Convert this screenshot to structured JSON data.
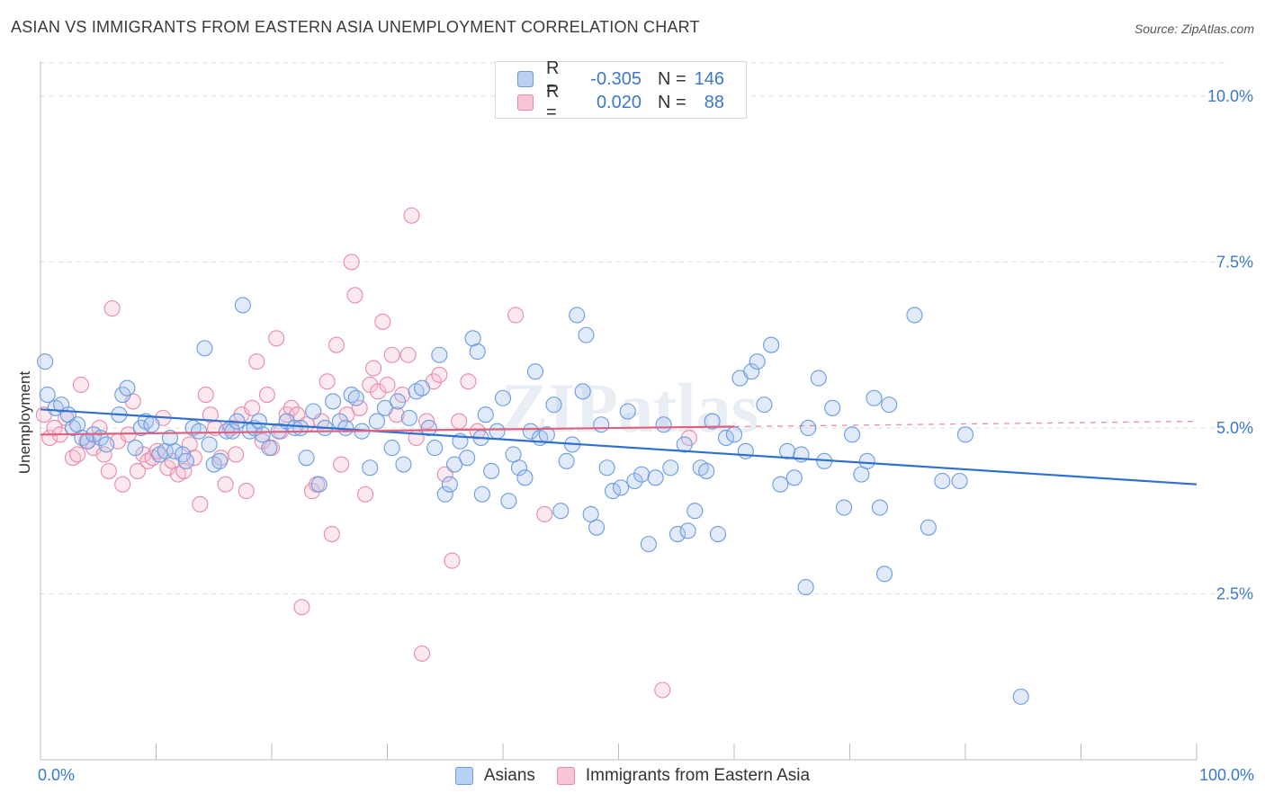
{
  "title": "ASIAN VS IMMIGRANTS FROM EASTERN ASIA UNEMPLOYMENT CORRELATION CHART",
  "source": "Source: ZipAtlas.com",
  "watermark": "ZIPatlas",
  "legend": {
    "rows": [
      {
        "label": "R =",
        "r": "-0.305",
        "n_label": "N =",
        "n": "146",
        "fill": "#b8d0f2",
        "stroke": "#6a9be0"
      },
      {
        "label": "R =",
        "r": "0.020",
        "n_label": "N =",
        "n": "88",
        "fill": "#f7c5d4",
        "stroke": "#e88aa8"
      }
    ]
  },
  "bottom_legend": [
    {
      "label": "Asians",
      "fill": "#b8d0f2",
      "stroke": "#6a9be0"
    },
    {
      "label": "Immigrants from Eastern Asia",
      "fill": "#f7c5d4",
      "stroke": "#e88aa8"
    }
  ],
  "y_axis_label": "Unemployment",
  "x_tick_labels": {
    "left": "0.0%",
    "right": "100.0%"
  },
  "chart_data": {
    "type": "scatter",
    "xlim": [
      0,
      100
    ],
    "ylim": [
      0,
      10.5
    ],
    "y_ticks": [
      {
        "value": 2.5,
        "label": "2.5%"
      },
      {
        "value": 5.0,
        "label": "5.0%"
      },
      {
        "value": 7.5,
        "label": "7.5%"
      },
      {
        "value": 10.0,
        "label": "10.0%"
      }
    ],
    "grid": true,
    "series": [
      {
        "name": "Asians",
        "color": "#6a9be0",
        "fill": "rgba(168,196,238,0.35)",
        "trend": {
          "x": [
            0,
            100
          ],
          "y": [
            5.28,
            4.15
          ]
        },
        "points": [
          [
            0.4,
            6.0
          ],
          [
            0.6,
            5.5
          ],
          [
            1.3,
            5.3
          ],
          [
            1.8,
            5.35
          ],
          [
            2.4,
            5.2
          ],
          [
            2.8,
            5.0
          ],
          [
            3.2,
            5.05
          ],
          [
            3.6,
            4.85
          ],
          [
            4.1,
            4.8
          ],
          [
            4.6,
            4.9
          ],
          [
            5.2,
            4.85
          ],
          [
            5.7,
            4.75
          ],
          [
            6.8,
            5.2
          ],
          [
            7.1,
            5.5
          ],
          [
            7.5,
            5.6
          ],
          [
            8.2,
            4.7
          ],
          [
            8.7,
            5.0
          ],
          [
            9.1,
            5.1
          ],
          [
            9.6,
            5.05
          ],
          [
            10.3,
            4.6
          ],
          [
            10.8,
            4.65
          ],
          [
            11.2,
            4.85
          ],
          [
            11.6,
            4.65
          ],
          [
            12.3,
            4.6
          ],
          [
            12.6,
            4.5
          ],
          [
            13.2,
            5.0
          ],
          [
            13.7,
            4.95
          ],
          [
            14.2,
            6.2
          ],
          [
            14.6,
            4.75
          ],
          [
            15.0,
            4.45
          ],
          [
            15.5,
            4.5
          ],
          [
            16.1,
            4.95
          ],
          [
            16.6,
            4.95
          ],
          [
            17.0,
            5.1
          ],
          [
            17.5,
            6.85
          ],
          [
            18.1,
            4.95
          ],
          [
            18.5,
            5.0
          ],
          [
            18.9,
            5.1
          ],
          [
            19.2,
            4.9
          ],
          [
            19.8,
            4.7
          ],
          [
            20.6,
            4.95
          ],
          [
            21.3,
            5.1
          ],
          [
            22.0,
            5.0
          ],
          [
            22.5,
            5.0
          ],
          [
            23.0,
            4.55
          ],
          [
            23.6,
            5.25
          ],
          [
            24.1,
            4.15
          ],
          [
            24.6,
            5.0
          ],
          [
            25.3,
            5.4
          ],
          [
            25.9,
            5.1
          ],
          [
            26.4,
            5.0
          ],
          [
            26.9,
            5.5
          ],
          [
            27.3,
            5.45
          ],
          [
            27.8,
            4.95
          ],
          [
            28.5,
            4.4
          ],
          [
            29.1,
            5.1
          ],
          [
            29.8,
            5.3
          ],
          [
            30.4,
            4.7
          ],
          [
            30.9,
            5.4
          ],
          [
            31.4,
            4.45
          ],
          [
            31.9,
            5.15
          ],
          [
            32.5,
            5.55
          ],
          [
            33.0,
            5.6
          ],
          [
            33.6,
            5.0
          ],
          [
            34.1,
            4.7
          ],
          [
            34.5,
            6.1
          ],
          [
            35.0,
            4.0
          ],
          [
            35.4,
            4.15
          ],
          [
            35.8,
            4.45
          ],
          [
            36.3,
            4.8
          ],
          [
            36.9,
            4.55
          ],
          [
            37.4,
            6.35
          ],
          [
            37.8,
            6.15
          ],
          [
            38.1,
            4.85
          ],
          [
            38.5,
            5.2
          ],
          [
            39.0,
            4.35
          ],
          [
            39.5,
            4.95
          ],
          [
            40.0,
            5.45
          ],
          [
            40.5,
            3.9
          ],
          [
            40.9,
            4.6
          ],
          [
            41.4,
            4.4
          ],
          [
            41.9,
            4.25
          ],
          [
            42.4,
            4.95
          ],
          [
            42.8,
            5.85
          ],
          [
            43.2,
            4.85
          ],
          [
            43.8,
            4.9
          ],
          [
            44.4,
            5.35
          ],
          [
            45.0,
            3.75
          ],
          [
            45.5,
            4.5
          ],
          [
            46.0,
            4.75
          ],
          [
            46.4,
            6.7
          ],
          [
            46.9,
            5.55
          ],
          [
            47.2,
            6.4
          ],
          [
            47.6,
            3.7
          ],
          [
            48.1,
            3.5
          ],
          [
            48.5,
            5.05
          ],
          [
            49.0,
            4.4
          ],
          [
            49.5,
            4.05
          ],
          [
            50.2,
            4.1
          ],
          [
            50.8,
            5.25
          ],
          [
            51.4,
            4.2
          ],
          [
            52.0,
            4.3
          ],
          [
            52.6,
            3.25
          ],
          [
            53.2,
            4.25
          ],
          [
            53.9,
            5.05
          ],
          [
            54.5,
            4.4
          ],
          [
            55.1,
            3.4
          ],
          [
            55.7,
            4.75
          ],
          [
            56.0,
            3.45
          ],
          [
            56.6,
            3.75
          ],
          [
            57.1,
            4.4
          ],
          [
            57.6,
            4.35
          ],
          [
            58.1,
            5.1
          ],
          [
            58.6,
            3.4
          ],
          [
            59.3,
            4.85
          ],
          [
            60.0,
            4.9
          ],
          [
            60.5,
            5.75
          ],
          [
            61.0,
            4.65
          ],
          [
            61.5,
            5.85
          ],
          [
            62.0,
            6.0
          ],
          [
            62.6,
            5.35
          ],
          [
            63.2,
            6.25
          ],
          [
            64.0,
            4.15
          ],
          [
            64.6,
            4.65
          ],
          [
            65.2,
            4.25
          ],
          [
            65.8,
            4.6
          ],
          [
            66.4,
            5.0
          ],
          [
            67.3,
            5.75
          ],
          [
            67.8,
            4.5
          ],
          [
            68.5,
            5.3
          ],
          [
            69.5,
            3.8
          ],
          [
            70.2,
            4.9
          ],
          [
            71.0,
            4.3
          ],
          [
            71.5,
            4.5
          ],
          [
            72.1,
            5.45
          ],
          [
            72.6,
            3.8
          ],
          [
            73.0,
            2.8
          ],
          [
            73.4,
            5.35
          ],
          [
            75.6,
            6.7
          ],
          [
            76.8,
            3.5
          ],
          [
            78.0,
            4.2
          ],
          [
            79.5,
            4.2
          ],
          [
            80.0,
            4.9
          ],
          [
            84.8,
            0.95
          ],
          [
            66.2,
            2.6
          ],
          [
            38.2,
            4.0
          ]
        ]
      },
      {
        "name": "Immigrants from Eastern Asia",
        "color": "#e88aa8",
        "fill": "rgba(247,190,208,0.35)",
        "trend": {
          "x": [
            0,
            60
          ],
          "y": [
            4.9,
            5.02
          ]
        },
        "trend_dashed": {
          "x": [
            60,
            100
          ],
          "y": [
            5.02,
            5.1
          ]
        },
        "points": [
          [
            0.3,
            5.2
          ],
          [
            0.8,
            4.85
          ],
          [
            1.2,
            5.0
          ],
          [
            1.7,
            4.9
          ],
          [
            2.2,
            5.15
          ],
          [
            2.8,
            4.55
          ],
          [
            3.2,
            4.6
          ],
          [
            3.5,
            5.65
          ],
          [
            4.0,
            4.8
          ],
          [
            4.6,
            4.7
          ],
          [
            5.1,
            5.0
          ],
          [
            5.5,
            4.6
          ],
          [
            5.9,
            4.35
          ],
          [
            6.2,
            6.8
          ],
          [
            6.7,
            4.8
          ],
          [
            7.1,
            4.15
          ],
          [
            7.6,
            4.9
          ],
          [
            8.0,
            5.4
          ],
          [
            8.4,
            4.35
          ],
          [
            8.9,
            4.6
          ],
          [
            9.3,
            4.5
          ],
          [
            9.7,
            4.55
          ],
          [
            10.1,
            4.65
          ],
          [
            10.6,
            5.15
          ],
          [
            11.0,
            4.4
          ],
          [
            11.4,
            4.5
          ],
          [
            11.9,
            4.3
          ],
          [
            12.4,
            4.35
          ],
          [
            12.9,
            4.75
          ],
          [
            13.3,
            4.55
          ],
          [
            13.8,
            3.85
          ],
          [
            14.3,
            5.5
          ],
          [
            14.7,
            5.2
          ],
          [
            15.1,
            5.0
          ],
          [
            15.6,
            4.55
          ],
          [
            16.0,
            4.15
          ],
          [
            16.5,
            5.0
          ],
          [
            16.9,
            4.6
          ],
          [
            17.4,
            5.2
          ],
          [
            17.8,
            4.05
          ],
          [
            18.3,
            5.3
          ],
          [
            18.7,
            6.0
          ],
          [
            19.2,
            4.8
          ],
          [
            19.6,
            5.5
          ],
          [
            20.0,
            4.7
          ],
          [
            20.4,
            6.35
          ],
          [
            20.8,
            4.95
          ],
          [
            21.3,
            5.2
          ],
          [
            21.7,
            5.3
          ],
          [
            22.2,
            5.2
          ],
          [
            22.6,
            2.3
          ],
          [
            23.0,
            5.05
          ],
          [
            23.5,
            4.05
          ],
          [
            23.9,
            4.15
          ],
          [
            24.3,
            5.1
          ],
          [
            24.8,
            5.7
          ],
          [
            25.2,
            3.4
          ],
          [
            25.6,
            6.25
          ],
          [
            26.0,
            4.45
          ],
          [
            26.5,
            5.2
          ],
          [
            26.9,
            7.5
          ],
          [
            27.2,
            7.0
          ],
          [
            27.6,
            5.3
          ],
          [
            28.1,
            4.0
          ],
          [
            28.5,
            5.65
          ],
          [
            28.8,
            5.9
          ],
          [
            29.2,
            5.55
          ],
          [
            29.6,
            6.6
          ],
          [
            30.0,
            5.65
          ],
          [
            30.4,
            6.1
          ],
          [
            30.8,
            5.2
          ],
          [
            31.3,
            5.5
          ],
          [
            31.8,
            6.1
          ],
          [
            32.1,
            8.2
          ],
          [
            32.5,
            4.85
          ],
          [
            33.0,
            1.6
          ],
          [
            33.4,
            5.1
          ],
          [
            34.0,
            5.7
          ],
          [
            34.5,
            5.8
          ],
          [
            35.0,
            4.3
          ],
          [
            35.6,
            3.0
          ],
          [
            36.2,
            5.1
          ],
          [
            37.0,
            5.7
          ],
          [
            37.8,
            4.95
          ],
          [
            41.1,
            6.7
          ],
          [
            43.6,
            3.7
          ],
          [
            53.8,
            1.05
          ],
          [
            56.1,
            4.85
          ]
        ]
      }
    ]
  }
}
